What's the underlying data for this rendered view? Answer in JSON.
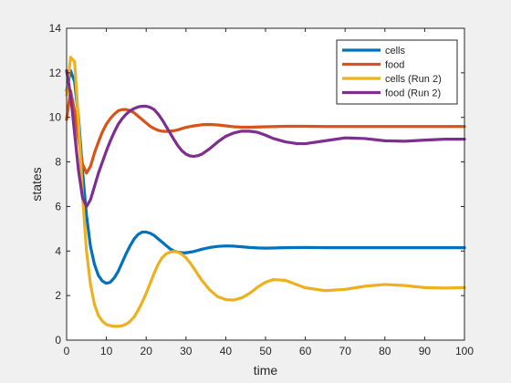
{
  "chart_data": {
    "type": "line",
    "title": "",
    "xlabel": "time",
    "ylabel": "states",
    "xlim": [
      0,
      100
    ],
    "ylim": [
      0,
      14
    ],
    "xticks": [
      0,
      10,
      20,
      30,
      40,
      50,
      60,
      70,
      80,
      90,
      100
    ],
    "yticks": [
      0,
      2,
      4,
      6,
      8,
      10,
      12,
      14
    ],
    "grid": false,
    "legend_position": "top-right",
    "series": [
      {
        "name": "cells",
        "color": "#0072bd",
        "x": [
          0,
          1,
          2,
          3,
          4,
          5,
          6,
          7,
          8,
          9,
          10,
          11,
          12,
          13,
          14,
          15,
          16,
          17,
          18,
          19,
          20,
          21,
          22,
          23,
          24,
          25,
          26,
          27,
          28,
          29,
          30,
          32,
          34,
          36,
          38,
          40,
          42,
          44,
          46,
          48,
          50,
          55,
          60,
          65,
          70,
          80,
          90,
          100
        ],
        "values": [
          11.2,
          12.1,
          11.6,
          10.0,
          7.6,
          5.6,
          4.2,
          3.4,
          2.9,
          2.65,
          2.55,
          2.6,
          2.8,
          3.1,
          3.5,
          3.9,
          4.25,
          4.55,
          4.75,
          4.85,
          4.85,
          4.8,
          4.7,
          4.55,
          4.4,
          4.25,
          4.1,
          4.0,
          3.95,
          3.92,
          3.92,
          3.98,
          4.08,
          4.16,
          4.21,
          4.23,
          4.22,
          4.19,
          4.16,
          4.14,
          4.13,
          4.15,
          4.16,
          4.15,
          4.15,
          4.15,
          4.15,
          4.15
        ]
      },
      {
        "name": "food",
        "color": "#d95319",
        "x": [
          0,
          1,
          2,
          3,
          4,
          5,
          6,
          7,
          8,
          9,
          10,
          11,
          12,
          13,
          14,
          15,
          16,
          17,
          18,
          19,
          20,
          21,
          22,
          23,
          24,
          25,
          26,
          27,
          28,
          29,
          30,
          32,
          34,
          36,
          38,
          40,
          42,
          44,
          46,
          48,
          50,
          55,
          60,
          65,
          70,
          80,
          90,
          100
        ],
        "values": [
          9.9,
          11.2,
          10.3,
          9.0,
          7.9,
          7.5,
          7.8,
          8.4,
          8.9,
          9.35,
          9.7,
          9.95,
          10.15,
          10.3,
          10.35,
          10.35,
          10.3,
          10.2,
          10.05,
          9.9,
          9.75,
          9.6,
          9.5,
          9.42,
          9.38,
          9.37,
          9.38,
          9.4,
          9.44,
          9.5,
          9.55,
          9.62,
          9.67,
          9.68,
          9.66,
          9.62,
          9.58,
          9.56,
          9.56,
          9.57,
          9.58,
          9.6,
          9.6,
          9.59,
          9.59,
          9.59,
          9.59,
          9.59
        ]
      },
      {
        "name": "cells (Run 2)",
        "color": "#edb120",
        "x": [
          0,
          1,
          2,
          3,
          4,
          5,
          6,
          7,
          8,
          9,
          10,
          11,
          12,
          13,
          14,
          15,
          16,
          17,
          18,
          19,
          20,
          21,
          22,
          23,
          24,
          25,
          26,
          27,
          28,
          29,
          30,
          31,
          32,
          33,
          34,
          36,
          38,
          40,
          42,
          44,
          46,
          48,
          50,
          52,
          55,
          58,
          60,
          65,
          70,
          75,
          80,
          85,
          90,
          95,
          100
        ],
        "values": [
          11.0,
          12.7,
          12.5,
          9.8,
          6.5,
          4.0,
          2.5,
          1.6,
          1.1,
          0.85,
          0.7,
          0.65,
          0.62,
          0.62,
          0.65,
          0.72,
          0.85,
          1.05,
          1.35,
          1.7,
          2.1,
          2.55,
          3.0,
          3.4,
          3.7,
          3.87,
          3.95,
          3.98,
          3.95,
          3.85,
          3.7,
          3.48,
          3.22,
          2.95,
          2.68,
          2.25,
          1.95,
          1.82,
          1.8,
          1.9,
          2.1,
          2.38,
          2.6,
          2.72,
          2.68,
          2.48,
          2.35,
          2.22,
          2.28,
          2.42,
          2.5,
          2.45,
          2.36,
          2.34,
          2.36
        ]
      },
      {
        "name": "food (Run 2)",
        "color": "#7e2f8e",
        "x": [
          0,
          1,
          2,
          3,
          4,
          5,
          6,
          7,
          8,
          9,
          10,
          11,
          12,
          13,
          14,
          15,
          16,
          17,
          18,
          19,
          20,
          21,
          22,
          23,
          24,
          25,
          26,
          27,
          28,
          29,
          30,
          31,
          32,
          33,
          34,
          36,
          38,
          40,
          42,
          44,
          46,
          48,
          50,
          52,
          55,
          58,
          60,
          65,
          70,
          75,
          80,
          85,
          90,
          95,
          100
        ],
        "values": [
          12.1,
          11.0,
          9.3,
          7.6,
          6.4,
          6.0,
          6.3,
          6.9,
          7.5,
          8.0,
          8.5,
          8.95,
          9.35,
          9.7,
          9.95,
          10.15,
          10.3,
          10.4,
          10.47,
          10.5,
          10.5,
          10.45,
          10.35,
          10.15,
          9.9,
          9.6,
          9.3,
          9.0,
          8.72,
          8.5,
          8.35,
          8.27,
          8.25,
          8.28,
          8.35,
          8.6,
          8.9,
          9.15,
          9.3,
          9.38,
          9.38,
          9.33,
          9.2,
          9.05,
          8.9,
          8.82,
          8.82,
          8.95,
          9.08,
          9.05,
          8.95,
          8.93,
          8.98,
          9.02,
          9.02
        ]
      }
    ]
  }
}
